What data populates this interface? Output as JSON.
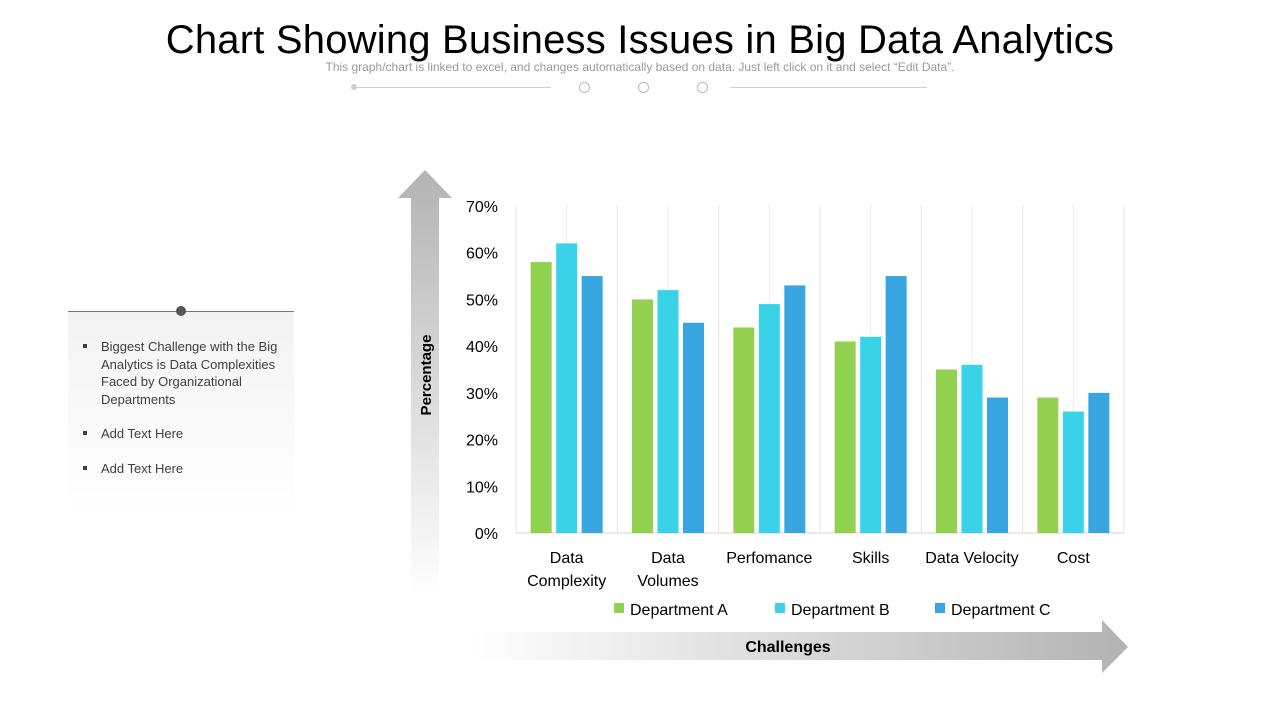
{
  "page": {
    "title": "Chart Showing Business Issues in Big Data Analytics",
    "subtitle": "This graph/chart is linked to excel, and changes automatically based on data. Just left click on it and select “Edit Data”."
  },
  "side_panel": {
    "bullets": [
      "Biggest Challenge with the Big Analytics is Data Complexities Faced by Organizational Departments",
      "Add Text Here",
      "Add Text Here"
    ]
  },
  "chart_data": {
    "type": "bar",
    "categories": [
      [
        "Data",
        "Complexity"
      ],
      [
        "Data",
        "Volumes"
      ],
      [
        "Perfomance"
      ],
      [
        "Skills"
      ],
      [
        "Data Velocity"
      ],
      [
        "Cost"
      ]
    ],
    "series": [
      {
        "name": "Department A",
        "color": "#92d050",
        "values": [
          58,
          50,
          44,
          41,
          35,
          29
        ]
      },
      {
        "name": "Department B",
        "color": "#39d2e8",
        "values": [
          62,
          52,
          49,
          42,
          36,
          26
        ]
      },
      {
        "name": "Department C",
        "color": "#36a5e0",
        "values": [
          55,
          45,
          53,
          55,
          29,
          30
        ]
      }
    ],
    "ylim": [
      0,
      70
    ],
    "yticks": [
      "0%",
      "10%",
      "20%",
      "30%",
      "40%",
      "50%",
      "60%",
      "70%"
    ],
    "ylabel": "Percentage",
    "xlabel": "Challenges",
    "legend_position": "bottom",
    "grid": "vertical"
  }
}
